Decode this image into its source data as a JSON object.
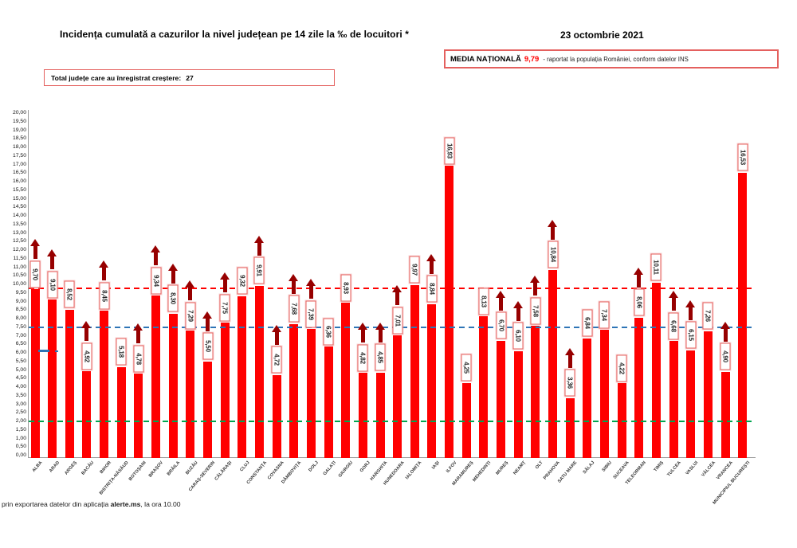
{
  "header": {
    "title": "Incidența cumulată a cazurilor la nivel județean pe 14 zile la ‰ de locuitori *",
    "date": "23 octombrie 2021",
    "national_average": {
      "label": "MEDIA NAȚIONALĂ",
      "value": "9,79",
      "note": "-  raportat la populația României, conform datelor INS"
    },
    "total_box": {
      "label": "Total județe care au înregistrat creștere:",
      "count": "27"
    }
  },
  "footer": {
    "prefix": "prin exportarea datelor din aplicația ",
    "bold": "alerte.ms",
    "suffix": ", la ora 10.00"
  },
  "chart_data": {
    "type": "bar",
    "title": "Incidența cumulată a cazurilor la nivel județean pe 14 zile la ‰ de locuitori *",
    "xlabel": "",
    "ylabel": "",
    "ylim": [
      0,
      20
    ],
    "ytick_step": 0.5,
    "grid": false,
    "bar_color": "#ff0000",
    "arrow_color": "#970000",
    "categories": [
      "ALBA",
      "ARAD",
      "ARGEȘ",
      "BACĂU",
      "BIHOR",
      "BISTRIȚA-NĂSĂUD",
      "BOTOȘANI",
      "BRAȘOV",
      "BRĂILA",
      "BUZĂU",
      "CARAȘ-SEVERIN",
      "CĂLĂRAȘI",
      "CLUJ",
      "CONSTANȚA",
      "COVASNA",
      "DÂMBOVIȚA",
      "DOLJ",
      "GALAȚI",
      "GIURGIU",
      "GORJ",
      "HARGHITA",
      "HUNEDOARA",
      "IALOMIȚA",
      "IAȘI",
      "ILFOV",
      "MARAMUREȘ",
      "MEHEDINȚI",
      "MUREȘ",
      "NEAMȚ",
      "OLT",
      "PRAHOVA",
      "SATU MARE",
      "SĂLAJ",
      "SIBIU",
      "SUCEAVA",
      "TELEORMAN",
      "TIMIȘ",
      "TULCEA",
      "VASLUI",
      "VÂLCEA",
      "VRANCEA",
      "MUNICIPIUL BUCUREȘTI"
    ],
    "values": [
      9.7,
      9.1,
      8.52,
      4.92,
      8.45,
      5.18,
      4.78,
      9.34,
      8.3,
      7.29,
      5.5,
      7.75,
      9.32,
      9.91,
      4.72,
      7.68,
      7.39,
      6.36,
      8.93,
      4.82,
      4.85,
      7.01,
      9.97,
      8.84,
      16.93,
      4.25,
      8.13,
      6.7,
      6.1,
      7.58,
      10.84,
      3.36,
      6.84,
      7.34,
      4.22,
      8.06,
      10.11,
      6.68,
      6.15,
      7.26,
      4.9,
      16.53
    ],
    "increase_arrow": [
      true,
      true,
      false,
      true,
      true,
      false,
      true,
      true,
      true,
      true,
      true,
      true,
      false,
      true,
      true,
      true,
      true,
      false,
      false,
      true,
      true,
      true,
      false,
      true,
      false,
      false,
      false,
      true,
      true,
      true,
      true,
      true,
      false,
      false,
      false,
      true,
      false,
      true,
      true,
      false,
      true,
      false
    ],
    "reference_lines": [
      {
        "name": "media-nationala",
        "value": 9.79,
        "color": "#ff0000"
      },
      {
        "name": "prag-albastru",
        "value": 7.5,
        "color": "#2e75b6"
      },
      {
        "name": "prag-verde",
        "value": 2.0,
        "color": "#00a550"
      }
    ],
    "legend_position": "none"
  }
}
